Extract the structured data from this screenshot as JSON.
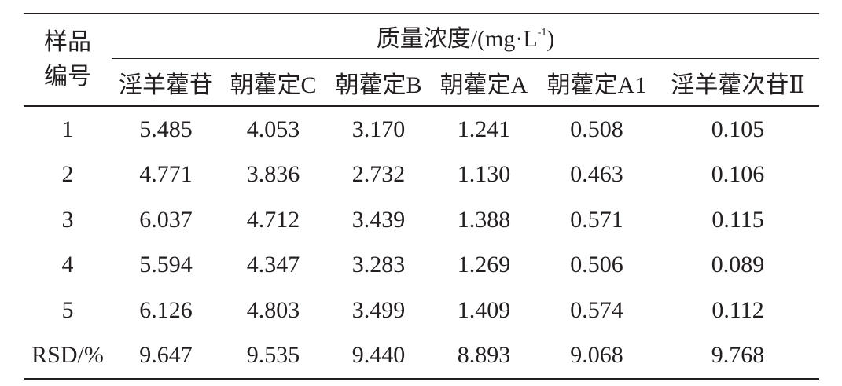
{
  "table": {
    "sample_header": [
      "样品",
      "编号"
    ],
    "group_header": {
      "text": "质量浓度/(mg·L",
      "sup": "-1",
      "close": ")"
    },
    "columns": [
      "淫羊藿苷",
      "朝藿定C",
      "朝藿定B",
      "朝藿定A",
      "朝藿定A1",
      "淫羊藿次苷Ⅱ"
    ],
    "rows": [
      [
        "1",
        "5.485",
        "4.053",
        "3.170",
        "1.241",
        "0.508",
        "0.105"
      ],
      [
        "2",
        "4.771",
        "3.836",
        "2.732",
        "1.130",
        "0.463",
        "0.106"
      ],
      [
        "3",
        "6.037",
        "4.712",
        "3.439",
        "1.388",
        "0.571",
        "0.115"
      ],
      [
        "4",
        "5.594",
        "4.347",
        "3.283",
        "1.269",
        "0.506",
        "0.089"
      ],
      [
        "5",
        "6.126",
        "4.803",
        "3.499",
        "1.409",
        "0.574",
        "0.112"
      ],
      [
        "RSD/%",
        "9.647",
        "9.535",
        "9.440",
        "8.893",
        "9.068",
        "9.768"
      ]
    ]
  }
}
